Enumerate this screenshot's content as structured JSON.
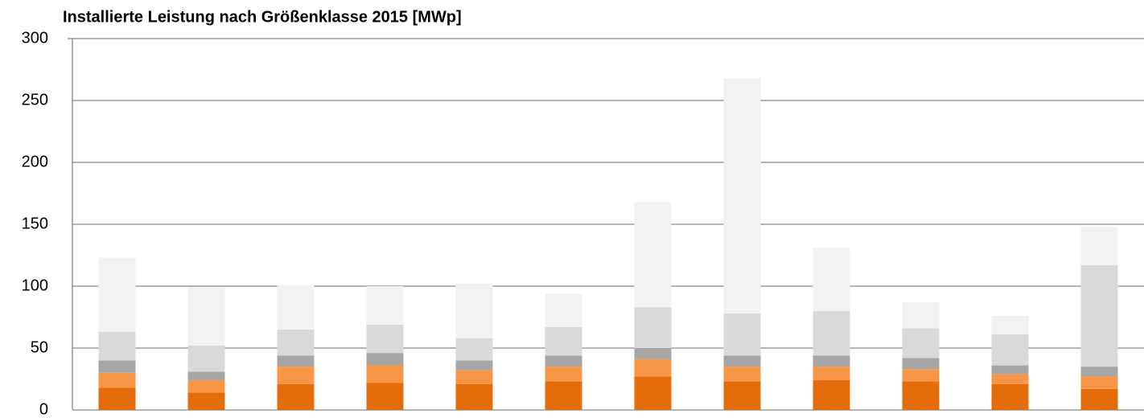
{
  "chart_data": {
    "type": "stacked_bar",
    "title": "Installierte Leistung nach Größenklasse 2015 [MWp]",
    "categories": [
      null,
      null,
      null,
      null,
      null,
      null,
      null,
      null,
      null,
      null,
      null,
      null
    ],
    "series": [
      {
        "color": "#e46c0a",
        "values": [
          18,
          14,
          21,
          22,
          21,
          23,
          27,
          23,
          24,
          23,
          21,
          17
        ]
      },
      {
        "color": "#f79646",
        "values": [
          12,
          10,
          14,
          14,
          11,
          12,
          14,
          12,
          11,
          10,
          8,
          10
        ]
      },
      {
        "color": "#a6a6a6",
        "values": [
          10,
          7,
          9,
          10,
          8,
          9,
          9,
          9,
          9,
          9,
          7,
          8
        ]
      },
      {
        "color": "#d9d9d9",
        "values": [
          23,
          21,
          21,
          23,
          18,
          23,
          33,
          34,
          36,
          24,
          25,
          82
        ]
      },
      {
        "color": "#f2f2f2",
        "values": [
          60,
          47,
          36,
          31,
          44,
          27,
          85,
          190,
          51,
          21,
          15,
          31
        ]
      }
    ],
    "ylim": [
      0,
      300
    ],
    "yticks": [
      0,
      50,
      100,
      150,
      200,
      250,
      300
    ],
    "grid": true
  }
}
